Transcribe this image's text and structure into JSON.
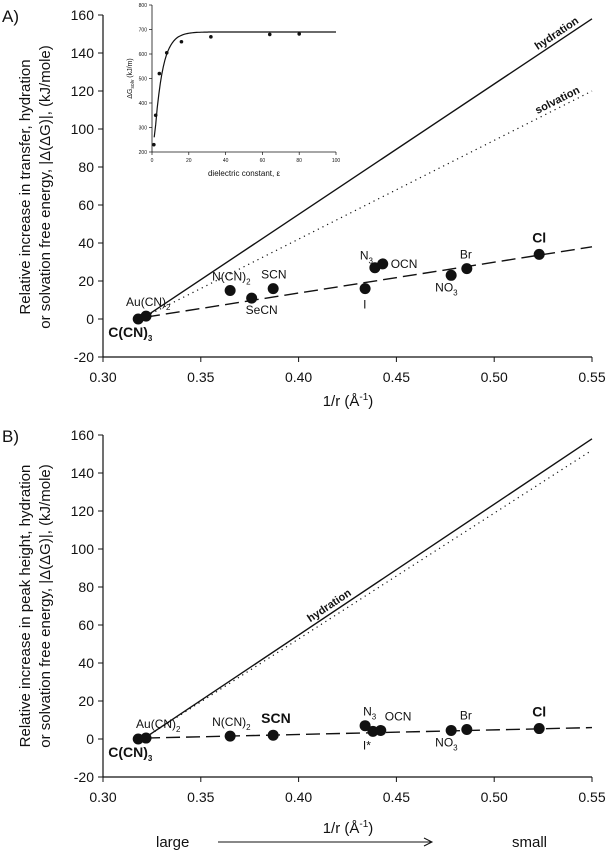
{
  "chart_data": [
    {
      "type": "scatter",
      "panel_label": "A)",
      "ylabel_line1": "Relative increase in transfer, hydration",
      "ylabel_line2": "or solvation free energy, |Δ(ΔG)|,  (kJ/mole)",
      "xlabel": "1/r  (Å",
      "xlabel_sup": "-1",
      "xlabel_close": ")",
      "xlim": [
        0.3,
        0.55
      ],
      "ylim": [
        -20,
        160
      ],
      "xticks": [
        "0.30",
        "0.35",
        "0.40",
        "0.45",
        "0.50",
        "0.55"
      ],
      "yticks": [
        "-20",
        "0",
        "20",
        "40",
        "60",
        "80",
        "100",
        "120",
        "140",
        "160"
      ],
      "points": [
        {
          "label": "C(CN)",
          "sub": "3",
          "x": 0.318,
          "y": 0,
          "bold": true
        },
        {
          "label": "Au(CN)",
          "sub": "2",
          "x": 0.322,
          "y": 1.5,
          "bold": false
        },
        {
          "label": "N(CN)",
          "sub": "2",
          "x": 0.365,
          "y": 15,
          "bold": false
        },
        {
          "label": "SeCN",
          "sub": "",
          "x": 0.376,
          "y": 11,
          "bold": false
        },
        {
          "label": "SCN",
          "sub": "",
          "x": 0.387,
          "y": 16,
          "bold": false
        },
        {
          "label": "I",
          "sub": "",
          "x": 0.434,
          "y": 16,
          "bold": false
        },
        {
          "label": "N",
          "sub": "3",
          "x": 0.439,
          "y": 27,
          "bold": false
        },
        {
          "label": "OCN",
          "sub": "",
          "x": 0.443,
          "y": 29,
          "bold": false
        },
        {
          "label": "NO",
          "sub": "3",
          "x": 0.478,
          "y": 23,
          "bold": false
        },
        {
          "label": "Br",
          "sub": "",
          "x": 0.486,
          "y": 26.5,
          "bold": false
        },
        {
          "label": "Cl",
          "sub": "",
          "x": 0.523,
          "y": 34,
          "bold": true
        }
      ],
      "lines": [
        {
          "name": "hydration",
          "style": "solid",
          "x": [
            0.322,
            0.55
          ],
          "y": [
            1.5,
            158
          ],
          "label": "hydration"
        },
        {
          "name": "solvation",
          "style": "dotted",
          "x": [
            0.322,
            0.55
          ],
          "y": [
            1.5,
            120
          ],
          "label": "solvation"
        },
        {
          "name": "fit",
          "style": "dashed",
          "x": [
            0.322,
            0.55
          ],
          "y": [
            1,
            38
          ]
        }
      ],
      "inset": {
        "type": "line",
        "xlabel": "dielectric constant, ε",
        "ylabel": "ΔG",
        "ylabel_sub": "solv",
        "ylabel_unit": " (kJ/m)",
        "xlim": [
          0,
          100
        ],
        "ylim": [
          200,
          800
        ],
        "xticks": [
          "0",
          "20",
          "40",
          "60",
          "80",
          "100"
        ],
        "yticks": [
          "200",
          "300",
          "400",
          "500",
          "600",
          "700",
          "800"
        ],
        "x": [
          1,
          2,
          4,
          8,
          16,
          32,
          64,
          80
        ],
        "y": [
          230,
          350,
          520,
          605,
          650,
          670,
          680,
          682
        ]
      }
    },
    {
      "type": "scatter",
      "panel_label": "B)",
      "ylabel_line1": "Relative increase in peak height, hydration",
      "ylabel_line2": "or solvation free energy, |Δ(ΔG)|,  (kJ/mole)",
      "xlabel": "1/r  (Å",
      "xlabel_sup": "-1",
      "xlabel_close": ")",
      "xlim": [
        0.3,
        0.55
      ],
      "ylim": [
        -20,
        160
      ],
      "xticks": [
        "0.30",
        "0.35",
        "0.40",
        "0.45",
        "0.50",
        "0.55"
      ],
      "yticks": [
        "-20",
        "0",
        "20",
        "40",
        "60",
        "80",
        "100",
        "120",
        "140",
        "160"
      ],
      "points": [
        {
          "label": "C(CN)",
          "sub": "3",
          "x": 0.318,
          "y": 0,
          "bold": true
        },
        {
          "label": "Au(CN)",
          "sub": "2",
          "x": 0.322,
          "y": 0.5,
          "bold": false
        },
        {
          "label": "N(CN)",
          "sub": "2",
          "x": 0.365,
          "y": 1.5,
          "bold": false
        },
        {
          "label": "SCN",
          "sub": "",
          "x": 0.387,
          "y": 2,
          "bold": true
        },
        {
          "label": "N",
          "sub": "3",
          "x": 0.434,
          "y": 7,
          "bold": false
        },
        {
          "label": "I*",
          "sub": "",
          "x": 0.438,
          "y": 4,
          "bold": false
        },
        {
          "label": "OCN",
          "sub": "",
          "x": 0.442,
          "y": 4.5,
          "bold": false
        },
        {
          "label": "NO",
          "sub": "3",
          "x": 0.478,
          "y": 4.5,
          "bold": false
        },
        {
          "label": "Br",
          "sub": "",
          "x": 0.486,
          "y": 5,
          "bold": false
        },
        {
          "label": "Cl",
          "sub": "",
          "x": 0.523,
          "y": 5.5,
          "bold": true
        }
      ],
      "lines": [
        {
          "name": "hydration",
          "style": "solid",
          "x": [
            0.322,
            0.55
          ],
          "y": [
            1,
            158
          ],
          "label": "hydration"
        },
        {
          "name": "solvation",
          "style": "dotted",
          "x": [
            0.322,
            0.55
          ],
          "y": [
            1,
            152
          ]
        },
        {
          "name": "fit",
          "style": "dashed",
          "x": [
            0.322,
            0.55
          ],
          "y": [
            0.5,
            6
          ]
        }
      ]
    }
  ],
  "footer": {
    "left": "large",
    "right": "small"
  }
}
